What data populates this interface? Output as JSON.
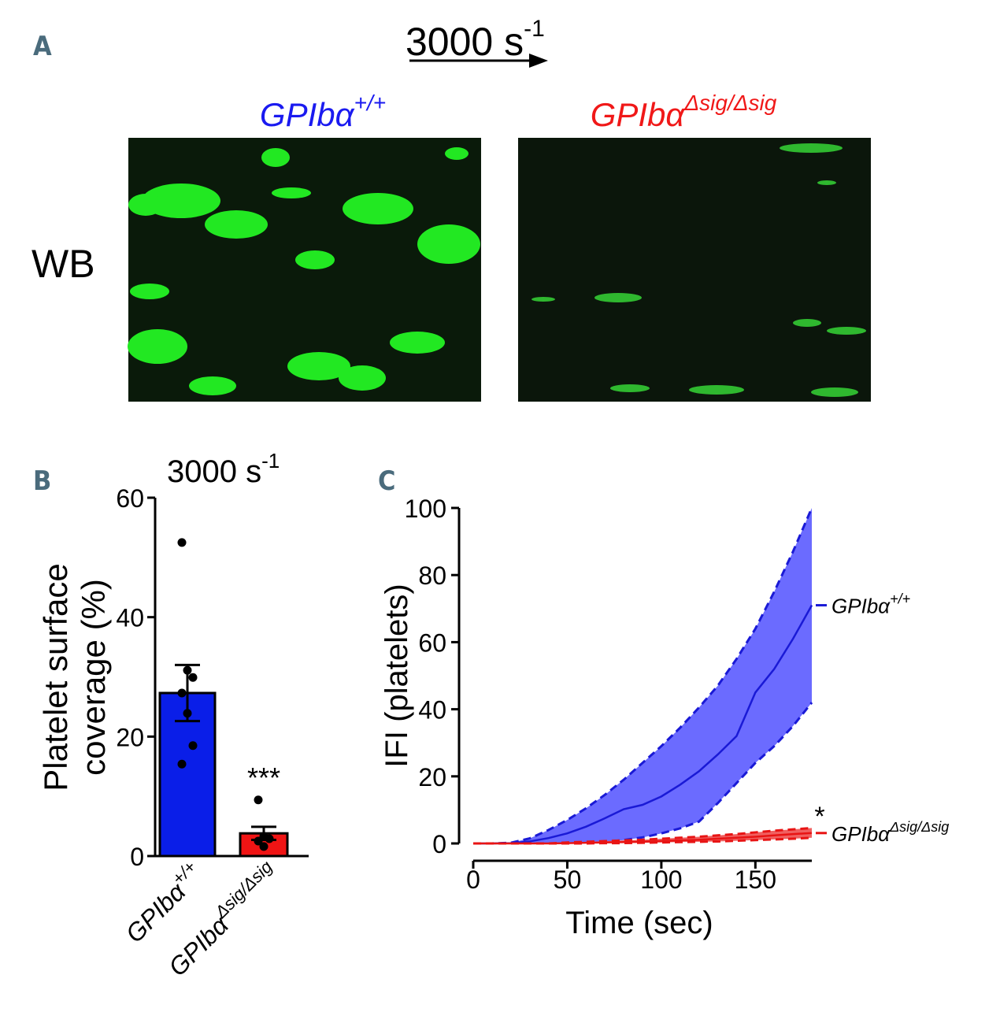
{
  "panel_a": {
    "label": "A",
    "shear": {
      "text": "3000 s",
      "sup": "-1"
    },
    "left_title": {
      "text": "GPIbα",
      "sup": "+/+"
    },
    "right_title": {
      "text": "GPIbα",
      "sup": "Δsig/Δsig"
    },
    "row_label": "WB"
  },
  "chart_data": [
    {
      "type": "bar",
      "panel_label": "B",
      "title": {
        "text": "3000 s",
        "sup": "-1"
      },
      "ylabel": [
        "Platelet surface",
        "coverage (%)"
      ],
      "categories": [
        {
          "text": "GPIbα",
          "sup": "+/+"
        },
        {
          "text": "GPIbα",
          "sup": "Δsig/Δsig"
        }
      ],
      "values": [
        27.3,
        3.8
      ],
      "errors": [
        4.7,
        1.1
      ],
      "points": [
        [
          52.5,
          31.1,
          29.9,
          27.3,
          23.9,
          18.5,
          15.4
        ],
        [
          9.4,
          3.3,
          2.9,
          2.5,
          1.6
        ]
      ],
      "colors": [
        "#0a1ee8",
        "#f01414"
      ],
      "annotation": "***",
      "ylim": [
        0,
        60
      ],
      "yticks": [
        0,
        20,
        40,
        60
      ]
    },
    {
      "type": "line",
      "panel_label": "C",
      "xlabel": "Time (sec)",
      "ylabel": "IFI (platelets)",
      "x": [
        0,
        10,
        20,
        30,
        40,
        50,
        60,
        70,
        80,
        90,
        100,
        110,
        120,
        130,
        140,
        150,
        160,
        170,
        180
      ],
      "series": [
        {
          "name": "GPIbα",
          "sup": "+/+",
          "color": "#1a1ad6",
          "band_color": "#6b6bff",
          "values": [
            0,
            0,
            0.1,
            0.6,
            1.6,
            3,
            5,
            7.5,
            10.2,
            11.5,
            14,
            17.5,
            21.5,
            26.5,
            32,
            45,
            52,
            61,
            71
          ],
          "upper": [
            0,
            0,
            0.2,
            1.5,
            4,
            7,
            10.5,
            14.5,
            19,
            24,
            29,
            34.5,
            40.5,
            47,
            55,
            64,
            75,
            87,
            100
          ],
          "lower": [
            0,
            0,
            0,
            0,
            0,
            0,
            0.2,
            0.5,
            1,
            1.8,
            3,
            4.5,
            6.5,
            12,
            18,
            24,
            29,
            35,
            42
          ]
        },
        {
          "name": "GPIbα",
          "sup": "Δsig/Δsig",
          "color": "#e81414",
          "band_color": "#f06060",
          "values": [
            0,
            0,
            0,
            0,
            0,
            0.1,
            0.2,
            0.3,
            0.4,
            0.5,
            0.7,
            0.9,
            1.1,
            1.4,
            1.7,
            2,
            2.4,
            2.8,
            3.1
          ],
          "upper": [
            0,
            0,
            0,
            0,
            0,
            0.3,
            0.5,
            0.7,
            0.9,
            1.1,
            1.4,
            1.7,
            2,
            2.4,
            2.8,
            3.3,
            3.8,
            4.2,
            4.6
          ],
          "lower": [
            0,
            0,
            0,
            0,
            0,
            0,
            0,
            0.1,
            0.1,
            0.2,
            0.3,
            0.4,
            0.5,
            0.6,
            0.8,
            1,
            1.2,
            1.4,
            1.7
          ]
        }
      ],
      "annotation": "*",
      "xlim": [
        0,
        180
      ],
      "xticks": [
        0,
        50,
        100,
        150
      ],
      "ylim": [
        0,
        100
      ],
      "yticks": [
        0,
        20,
        40,
        60,
        80,
        100
      ]
    }
  ]
}
